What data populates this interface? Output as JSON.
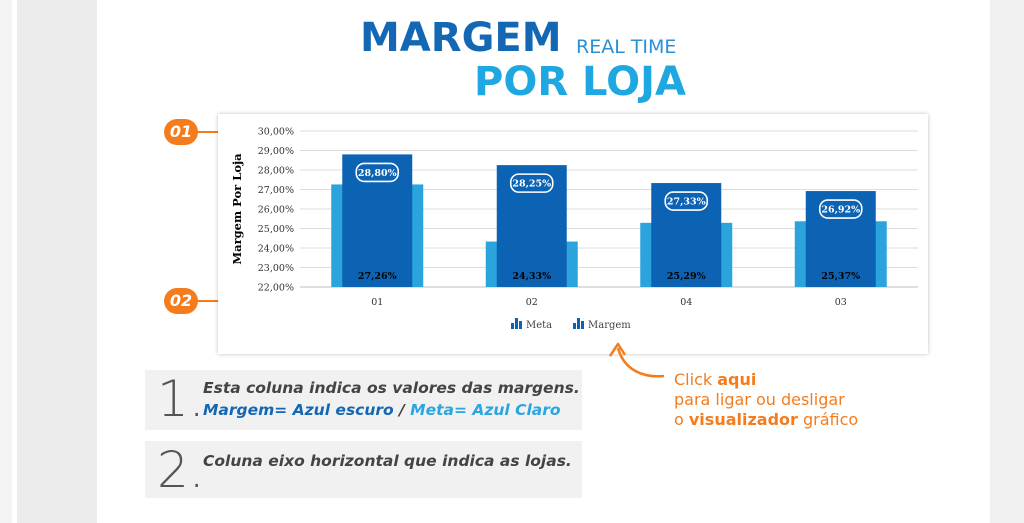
{
  "header": {
    "title_main": "MARGEM",
    "title_sub": "REAL TIME",
    "title_second": "POR LOJA"
  },
  "callouts": {
    "badge_1": "01",
    "badge_2": "02"
  },
  "chart_data": {
    "type": "bar",
    "ylabel": "Margem Por Loja",
    "xlabel": "",
    "ylim": [
      22,
      30
    ],
    "y_ticks": [
      "30,00%",
      "29,00%",
      "28,00%",
      "27,00%",
      "26,00%",
      "25,00%",
      "24,00%",
      "23,00%",
      "22,00%"
    ],
    "categories": [
      "01",
      "02",
      "04",
      "03"
    ],
    "series": [
      {
        "name": "Meta",
        "values": [
          27.26,
          24.33,
          25.29,
          25.37
        ],
        "labels": [
          "27,26%",
          "24,33%",
          "25,29%",
          "25,37%"
        ],
        "color": "#2ba3dd"
      },
      {
        "name": "Margem",
        "values": [
          28.8,
          28.25,
          27.33,
          26.92
        ],
        "labels": [
          "28,80%",
          "28,25%",
          "27,33%",
          "26,92%"
        ],
        "color": "#0c63b4"
      }
    ],
    "grid": true,
    "legend": "bottom"
  },
  "notes": [
    {
      "number": "1.",
      "line1": "Esta coluna indica os valores das margens.",
      "line2_a": "Margem= Azul escuro",
      "line2_sep": " / ",
      "line2_b": "Meta= Azul Claro"
    },
    {
      "number": "2.",
      "line1": "Coluna eixo horizontal que indica as lojas."
    }
  ],
  "click_hint": {
    "line1_a": "Click ",
    "line1_b": "aqui",
    "line2": "para  ligar ou desligar",
    "line3_a": "o ",
    "line3_b": "visualizador",
    "line3_c": " gráfico"
  },
  "colors": {
    "accent_orange": "#f47c1c",
    "title_blue": "#1367b3",
    "title_light_blue": "#1ea7e0"
  }
}
